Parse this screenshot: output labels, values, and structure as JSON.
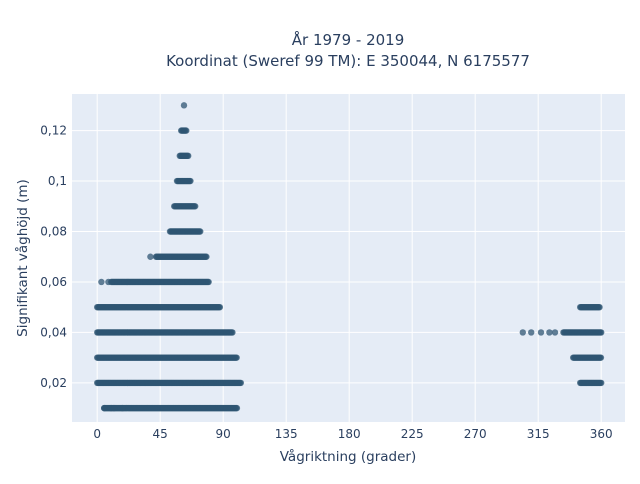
{
  "chart_data": {
    "type": "scatter",
    "title_line1": "År 1979 - 2019",
    "title_line2": "Koordinat (Sweref 99 TM): E 350044, N 6175577",
    "xlabel": "Vågriktning (grader)",
    "ylabel": "Signifikant våghöjd (m)",
    "xlim": [
      -18,
      377
    ],
    "ylim": [
      0.0045,
      0.1345
    ],
    "x_ticks": [
      0,
      45,
      90,
      135,
      180,
      225,
      270,
      315,
      360
    ],
    "x_tick_labels": [
      "0",
      "45",
      "90",
      "135",
      "180",
      "225",
      "270",
      "315",
      "360"
    ],
    "y_ticks": [
      0.02,
      0.04,
      0.06,
      0.08,
      0.1,
      0.12
    ],
    "y_tick_labels": [
      "0,02",
      "0,04",
      "0,06",
      "0,08",
      "0,1",
      "0,12"
    ],
    "grid": true,
    "marker_color": "#2f5673",
    "background": "#e5ecf6",
    "bands": [
      {
        "y": 0.01,
        "x_start": 5,
        "x_end": 100,
        "isolated": [
          5,
          10,
          12,
          18
        ]
      },
      {
        "y": 0.02,
        "x_start": 0,
        "x_end": 103,
        "isolated": []
      },
      {
        "y": 0.03,
        "x_start": 0,
        "x_end": 100,
        "isolated": []
      },
      {
        "y": 0.04,
        "x_start": 0,
        "x_end": 97,
        "isolated": []
      },
      {
        "y": 0.05,
        "x_start": 0,
        "x_end": 88,
        "isolated": []
      },
      {
        "y": 0.06,
        "x_start": 10,
        "x_end": 80,
        "isolated": [
          3,
          8
        ]
      },
      {
        "y": 0.07,
        "x_start": 42,
        "x_end": 78,
        "isolated": [
          38
        ]
      },
      {
        "y": 0.08,
        "x_start": 52,
        "x_end": 74,
        "isolated": []
      },
      {
        "y": 0.09,
        "x_start": 55,
        "x_end": 70,
        "isolated": []
      },
      {
        "y": 0.1,
        "x_start": 57,
        "x_end": 67,
        "isolated": []
      },
      {
        "y": 0.11,
        "x_start": 59,
        "x_end": 65,
        "isolated": []
      },
      {
        "y": 0.12,
        "x_start": 60,
        "x_end": 64,
        "isolated": []
      },
      {
        "y": 0.13,
        "x_start": 62,
        "x_end": 62,
        "isolated": []
      },
      {
        "y": 0.02,
        "x_start": 345,
        "x_end": 360,
        "isolated": []
      },
      {
        "y": 0.03,
        "x_start": 340,
        "x_end": 360,
        "isolated": []
      },
      {
        "y": 0.04,
        "x_start": 333,
        "x_end": 360,
        "isolated": [
          304,
          310,
          317,
          323,
          327
        ]
      },
      {
        "y": 0.05,
        "x_start": 345,
        "x_end": 359,
        "isolated": []
      }
    ]
  }
}
